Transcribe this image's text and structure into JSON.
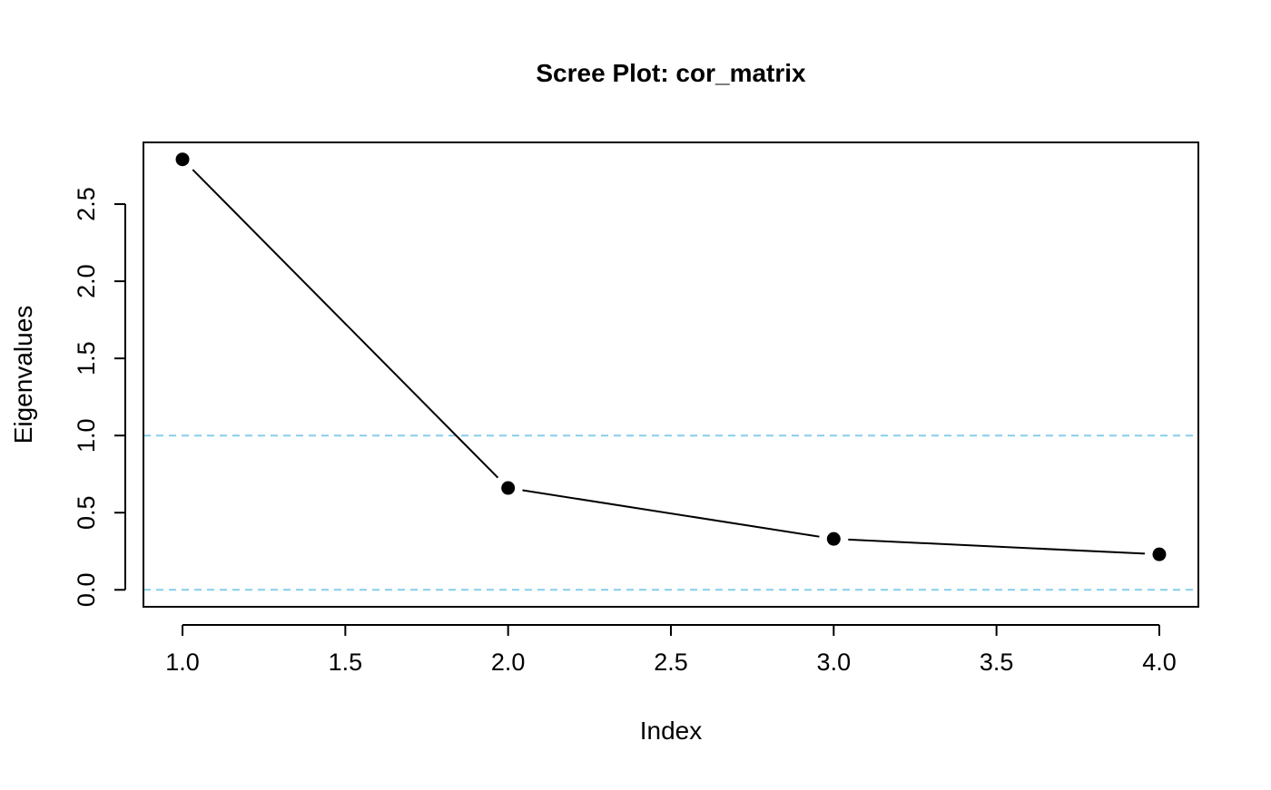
{
  "chart_data": {
    "type": "scatter",
    "title": "Scree Plot: cor_matrix",
    "xlabel": "Index",
    "ylabel": "Eigenvalues",
    "xlim": [
      0.88,
      4.12
    ],
    "ylim": [
      -0.11,
      2.9
    ],
    "x_ticks": [
      "1.0",
      "1.5",
      "2.0",
      "2.5",
      "3.0",
      "3.5",
      "4.0"
    ],
    "y_ticks": [
      "0.0",
      "0.5",
      "1.0",
      "1.5",
      "2.0",
      "2.5"
    ],
    "grid": false,
    "series": [
      {
        "x": [
          1,
          2,
          3,
          4
        ],
        "values": [
          2.79,
          0.66,
          0.33,
          0.23
        ],
        "style": "both-points-and-lines",
        "color": "#000000"
      }
    ],
    "reference_lines": [
      {
        "y": 1.0,
        "color": "#87CEEB",
        "style": "dashed"
      },
      {
        "y": 0.0,
        "color": "#87CEEB",
        "style": "dashed"
      }
    ]
  }
}
